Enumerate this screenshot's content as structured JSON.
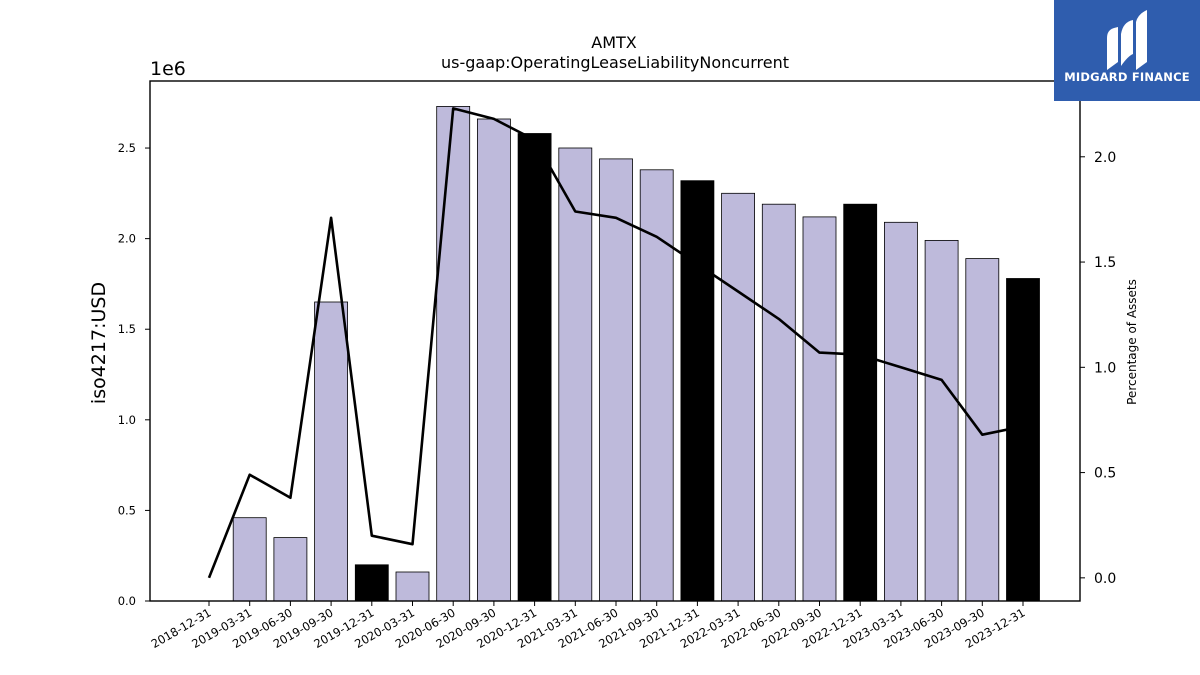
{
  "chart_data": {
    "type": "bar",
    "title": "AMTX",
    "subtitle": "us-gaap:OperatingLeaseLiabilityNoncurrent",
    "ylabel": "iso4217:USD",
    "y_offset_label": "1e6",
    "y2label": "Percentage of Assets",
    "ylim": [
      0,
      2870000
    ],
    "y2lim": [
      -0.11,
      2.36
    ],
    "yticks": [
      "0.0",
      "0.5",
      "1.0",
      "1.5",
      "2.0",
      "2.5"
    ],
    "y2ticks": [
      "0.0",
      "0.5",
      "1.0",
      "1.5",
      "2.0"
    ],
    "grid": false,
    "categories": [
      "2018-12-31",
      "2019-03-31",
      "2019-06-30",
      "2019-09-30",
      "2019-12-31",
      "2020-03-31",
      "2020-06-30",
      "2020-09-30",
      "2020-12-31",
      "2021-03-31",
      "2021-06-30",
      "2021-09-30",
      "2021-12-31",
      "2022-03-31",
      "2022-06-30",
      "2022-09-30",
      "2022-12-31",
      "2023-03-31",
      "2023-06-30",
      "2023-09-30",
      "2023-12-31"
    ],
    "series": [
      {
        "type": "bar",
        "values": [
          0,
          460000,
          350000,
          1650000,
          200000,
          160000,
          2730000,
          2660000,
          2580000,
          2500000,
          2440000,
          2380000,
          2320000,
          2250000,
          2190000,
          2120000,
          2190000,
          2090000,
          1990000,
          1890000,
          1780000
        ],
        "colors": [
          "#bebadb",
          "#bebadb",
          "#bebadb",
          "#bebadb",
          "#000000",
          "#bebadb",
          "#bebadb",
          "#bebadb",
          "#000000",
          "#bebadb",
          "#bebadb",
          "#bebadb",
          "#000000",
          "#bebadb",
          "#bebadb",
          "#bebadb",
          "#000000",
          "#bebadb",
          "#bebadb",
          "#bebadb",
          "#000000"
        ]
      },
      {
        "type": "line",
        "axis": "right",
        "color": "#000000",
        "values": [
          0.0,
          0.49,
          0.38,
          1.71,
          0.2,
          0.16,
          2.23,
          2.18,
          2.08,
          1.74,
          1.71,
          1.62,
          1.49,
          1.36,
          1.23,
          1.07,
          1.06,
          1.0,
          0.94,
          0.68,
          0.72
        ]
      }
    ]
  },
  "logo": {
    "text": "MIDGARD FINANCE",
    "background": "#2f5dae"
  }
}
